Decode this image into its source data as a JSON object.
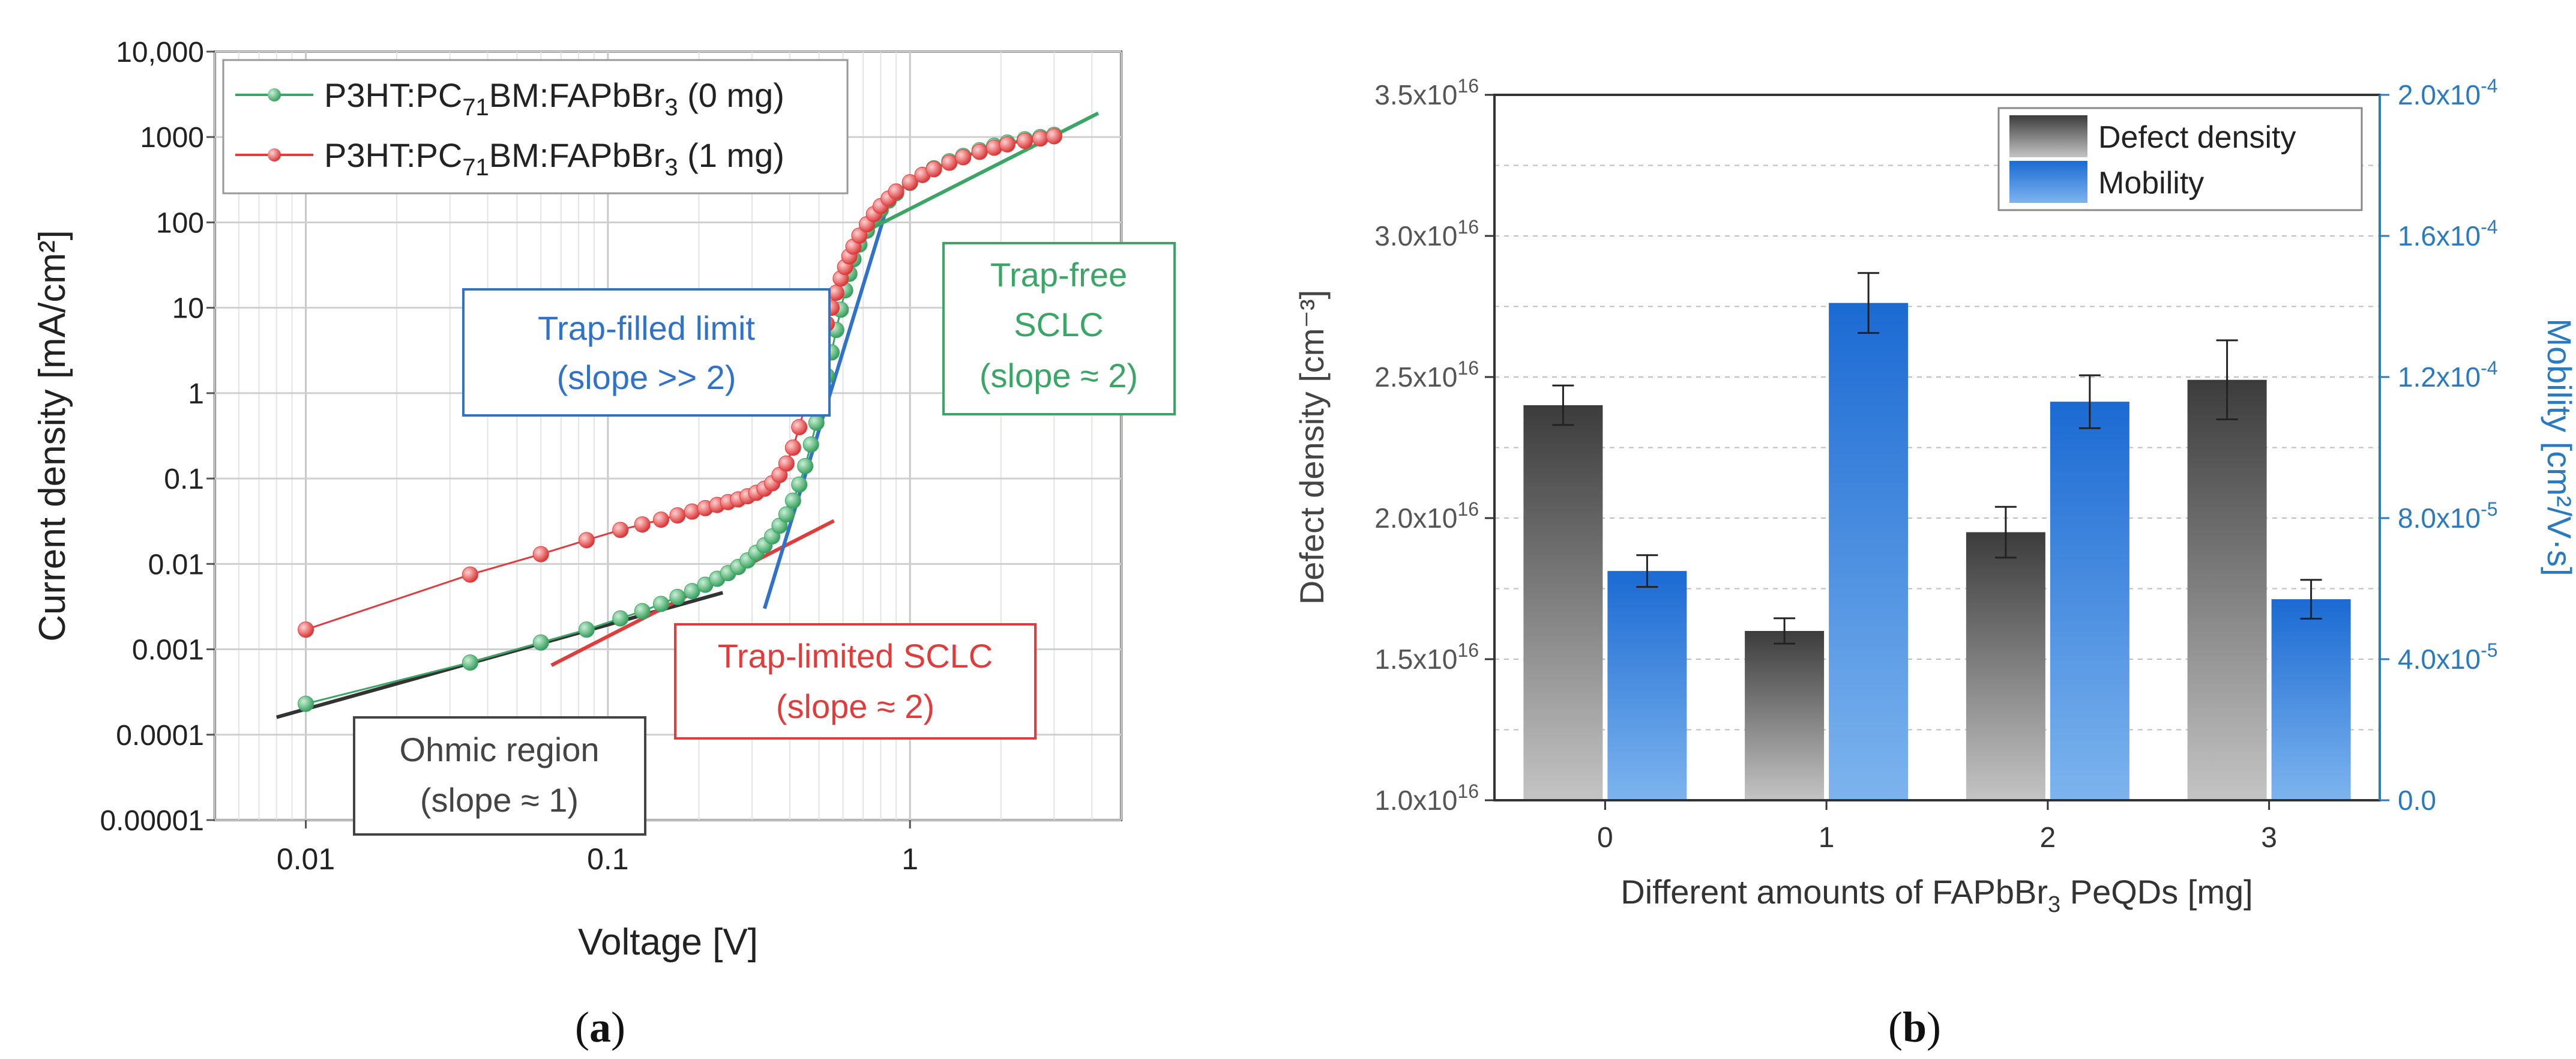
{
  "chart_data": [
    {
      "type": "scatter",
      "panel": "a",
      "xscale": "log",
      "yscale": "log",
      "xlabel": "Voltage [V]",
      "ylabel": "Current density [mA/cm²]",
      "xlim": [
        0.005,
        5
      ],
      "ylim": [
        1e-05,
        10000
      ],
      "grid": true,
      "legend_position": "top-left",
      "x_ticks": [
        {
          "value": 0.01,
          "label": "0.01"
        },
        {
          "value": 0.1,
          "label": "0.1"
        },
        {
          "value": 1,
          "label": "1"
        }
      ],
      "y_ticks": [
        {
          "value": 1e-05,
          "label": "0.00001"
        },
        {
          "value": 0.0001,
          "label": "0.0001"
        },
        {
          "value": 0.001,
          "label": "0.001"
        },
        {
          "value": 0.01,
          "label": "0.01"
        },
        {
          "value": 0.1,
          "label": "0.1"
        },
        {
          "value": 1,
          "label": "1"
        },
        {
          "value": 10,
          "label": "10"
        },
        {
          "value": 100,
          "label": "100"
        },
        {
          "value": 1000,
          "label": "1000"
        },
        {
          "value": 10000,
          "label": "10,000"
        }
      ],
      "series": [
        {
          "name": "P3HT:PC71BM:FAPbBr3 (0 mg)",
          "legend_parts": [
            "P3HT:PC",
            "71",
            "BM:FAPbBr",
            "3",
            " (0 mg)"
          ],
          "color": "#3aa564",
          "x": [
            0.01,
            0.035,
            0.06,
            0.085,
            0.11,
            0.13,
            0.15,
            0.17,
            0.19,
            0.21,
            0.23,
            0.25,
            0.27,
            0.29,
            0.31,
            0.33,
            0.35,
            0.37,
            0.39,
            0.41,
            0.43,
            0.45,
            0.47,
            0.49,
            0.51,
            0.53,
            0.55,
            0.57,
            0.59,
            0.61,
            0.63,
            0.65,
            0.68,
            0.72,
            0.76,
            0.8,
            0.85,
            0.9,
            1.0,
            1.1,
            1.2,
            1.35,
            1.5,
            1.7,
            1.9,
            2.1,
            2.4,
            2.7,
            3.0
          ],
          "y": [
            0.00023,
            0.0007,
            0.0012,
            0.0017,
            0.0023,
            0.0028,
            0.0034,
            0.0041,
            0.0048,
            0.0057,
            0.0067,
            0.0078,
            0.0092,
            0.011,
            0.0135,
            0.0165,
            0.021,
            0.028,
            0.038,
            0.055,
            0.085,
            0.14,
            0.25,
            0.45,
            0.85,
            1.6,
            3.0,
            5.5,
            9.5,
            16,
            25,
            37,
            55,
            80,
            110,
            140,
            180,
            220,
            290,
            360,
            430,
            520,
            600,
            700,
            790,
            860,
            940,
            1000,
            1060
          ]
        },
        {
          "name": "P3HT:PC71BM:FAPbBr3 (1 mg)",
          "legend_parts": [
            "P3HT:PC",
            "71",
            "BM:FAPbBr",
            "3",
            " (1 mg)"
          ],
          "color": "#e03c3c",
          "x": [
            0.01,
            0.035,
            0.06,
            0.085,
            0.11,
            0.13,
            0.15,
            0.17,
            0.19,
            0.21,
            0.23,
            0.25,
            0.27,
            0.29,
            0.31,
            0.33,
            0.35,
            0.37,
            0.39,
            0.41,
            0.43,
            0.45,
            0.47,
            0.49,
            0.51,
            0.53,
            0.55,
            0.57,
            0.59,
            0.61,
            0.63,
            0.65,
            0.68,
            0.72,
            0.76,
            0.8,
            0.85,
            0.9,
            1.0,
            1.1,
            1.2,
            1.35,
            1.5,
            1.7,
            1.9,
            2.1,
            2.4,
            2.7,
            3.0
          ],
          "y": [
            0.0017,
            0.0075,
            0.013,
            0.019,
            0.025,
            0.029,
            0.033,
            0.037,
            0.041,
            0.045,
            0.049,
            0.053,
            0.057,
            0.062,
            0.068,
            0.076,
            0.088,
            0.11,
            0.15,
            0.23,
            0.4,
            0.72,
            1.3,
            2.3,
            4.0,
            6.5,
            10,
            15,
            22,
            30,
            40,
            52,
            70,
            95,
            125,
            155,
            190,
            230,
            295,
            360,
            420,
            500,
            580,
            670,
            750,
            820,
            900,
            960,
            1020
          ]
        }
      ],
      "fit_lines": [
        {
          "name": "Ohmic fit",
          "color": "#333333",
          "x": [
            0.008,
            0.24
          ],
          "y": [
            0.00016,
            0.0046
          ]
        },
        {
          "name": "Trap-limited SCLC fit",
          "color": "#e03c3c",
          "x": [
            0.065,
            0.56
          ],
          "y": [
            0.00065,
            0.032
          ]
        },
        {
          "name": "Trap-filled limit fit",
          "color": "#2f72c8",
          "x": [
            0.33,
            0.86
          ],
          "y": [
            0.003,
            200
          ]
        },
        {
          "name": "Trap-free SCLC fit",
          "color": "#3aa564",
          "x": [
            0.72,
            4.2
          ],
          "y": [
            80,
            1900
          ]
        }
      ],
      "annotations": [
        {
          "lines": [
            "Trap-filled limit",
            "(slope >> 2)"
          ],
          "color": "#2f72c8"
        },
        {
          "lines": [
            "Trap-free",
            "SCLC",
            "(slope ≈ 2)"
          ],
          "color": "#3aa564"
        },
        {
          "lines": [
            "Trap-limited SCLC",
            "(slope ≈ 2)"
          ],
          "color": "#e03c3c"
        },
        {
          "lines": [
            "Ohmic region",
            "(slope ≈ 1)"
          ],
          "color": "#444444"
        }
      ]
    },
    {
      "type": "bar",
      "panel": "b",
      "xlabel": "Different amounts of FAPbBr3 PeQDs [mg]",
      "xlabel_parts": [
        "Different amounts of FAPbBr",
        "3",
        " PeQDs [mg]"
      ],
      "categories": [
        "0",
        "1",
        "2",
        "3"
      ],
      "legend_position": "top-right",
      "y_left": {
        "label": "Defect density [cm⁻³]",
        "ylim": [
          1e+16,
          3.5e+16
        ],
        "ticks": [
          {
            "value": 1e+16,
            "mant": "1.0x10",
            "exp": "16"
          },
          {
            "value": 1.5e+16,
            "mant": "1.5x10",
            "exp": "16"
          },
          {
            "value": 2e+16,
            "mant": "2.0x10",
            "exp": "16"
          },
          {
            "value": 2.5e+16,
            "mant": "2.5x10",
            "exp": "16"
          },
          {
            "value": 3e+16,
            "mant": "3.0x10",
            "exp": "16"
          },
          {
            "value": 3.5e+16,
            "mant": "3.5x10",
            "exp": "16"
          }
        ]
      },
      "y_right": {
        "label": "Mobility [cm²/V·s]",
        "ylim": [
          0,
          0.0002
        ],
        "color": "#2a7ac0",
        "ticks": [
          {
            "value": 0,
            "mant": "0.0",
            "exp": ""
          },
          {
            "value": 4e-05,
            "mant": "4.0x10",
            "exp": "-5"
          },
          {
            "value": 8e-05,
            "mant": "8.0x10",
            "exp": "-5"
          },
          {
            "value": 0.00012,
            "mant": "1.2x10",
            "exp": "-4"
          },
          {
            "value": 0.00016,
            "mant": "1.6x10",
            "exp": "-4"
          },
          {
            "value": 0.0002,
            "mant": "2.0x10",
            "exp": "-4"
          }
        ]
      },
      "series": [
        {
          "name": "Defect density",
          "axis": "left",
          "color": "#555555",
          "values": [
            2.4e+16,
            1.6e+16,
            1.95e+16,
            2.49e+16
          ],
          "errors": [
            700000000000000.0,
            450000000000000.0,
            900000000000000.0,
            1400000000000000.0
          ]
        },
        {
          "name": "Mobility",
          "axis": "right",
          "color": "#1f6fd6",
          "values": [
            6.5e-05,
            0.000141,
            0.000113,
            5.7e-05
          ],
          "errors": [
            4.5e-06,
            8.5e-06,
            7.5e-06,
            5.5e-06
          ]
        }
      ]
    }
  ],
  "panel_labels": {
    "a": "a",
    "b": "b"
  }
}
